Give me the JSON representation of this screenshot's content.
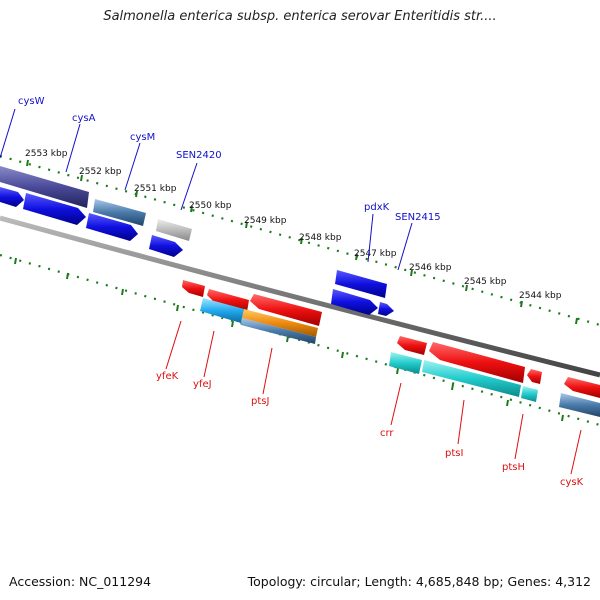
{
  "title": "Salmonella enterica subsp. enterica serovar Enteritidis str....",
  "footer": {
    "accession": "Accession: NC_011294",
    "info": "Topology: circular; Length: 4,685,848 bp; Genes: 4,312"
  },
  "ticks": [
    "2553 kbp",
    "2552 kbp",
    "2551 kbp",
    "2550 kbp",
    "2549 kbp",
    "2548 kbp",
    "2547 kbp",
    "2546 kbp",
    "2545 kbp",
    "2544 kbp"
  ],
  "forward_genes": [
    "cysW",
    "cysA",
    "cysM",
    "SEN2420",
    "pdxK",
    "SEN2415"
  ],
  "reverse_genes": [
    "yfeK",
    "yfeJ",
    "ptsJ",
    "crr",
    "ptsI",
    "ptsH",
    "cysK"
  ],
  "colors": {
    "forward_label": "#1010c8",
    "reverse_label": "#dd1010",
    "backbone": "#777777",
    "tick": "#1f7a1f"
  }
}
